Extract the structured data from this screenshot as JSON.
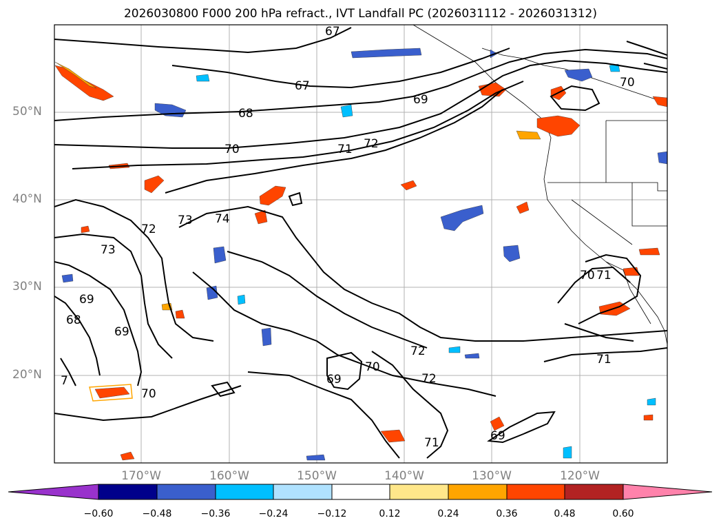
{
  "title": "2026030800 F000 200 hPa refract., IVT Landfall PC (2026031112 - 2026031312)",
  "map": {
    "lat_labels": [
      "50°N",
      "40°N",
      "30°N",
      "20°N"
    ],
    "lon_labels": [
      "170°W",
      "160°W",
      "150°W",
      "140°W",
      "130°W",
      "120°W"
    ],
    "contour_labels": [
      "67",
      "67",
      "68",
      "69",
      "70",
      "71",
      "72",
      "72",
      "73",
      "73",
      "74",
      "69",
      "68",
      "69",
      "70",
      "72",
      "72",
      "70",
      "69",
      "71",
      "70",
      "71",
      "71",
      "7",
      "70",
      "69"
    ]
  },
  "colorbar": {
    "ticks": [
      "−0.60",
      "−0.48",
      "−0.36",
      "−0.24",
      "−0.12",
      "0.12",
      "0.24",
      "0.36",
      "0.48",
      "0.60"
    ],
    "colors": [
      "#9932CC",
      "#00008B",
      "#3A5FCD",
      "#00BFFF",
      "#B0E2FF",
      "#FFFFFF",
      "#FFE78A",
      "#FFA500",
      "#FF4500",
      "#B22222",
      "#FF82AB"
    ]
  }
}
